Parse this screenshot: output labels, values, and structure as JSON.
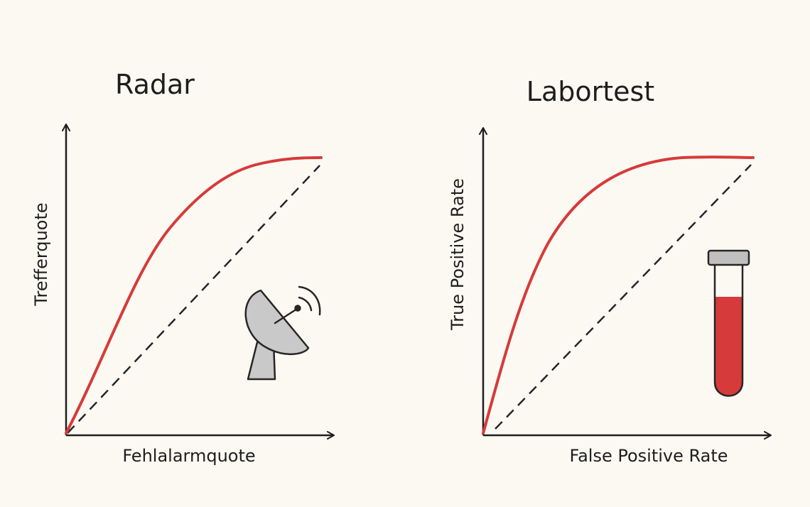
{
  "panels": [
    {
      "id": "radar",
      "title": "Radar",
      "xlabel": "Fehlalarmquote",
      "ylabel": "Trefferquote",
      "icon": "satellite-dish-icon"
    },
    {
      "id": "labortest",
      "title": "Labortest",
      "xlabel": "False Positive Rate",
      "ylabel": "True Positive Rate",
      "icon": "test-tube-icon"
    }
  ],
  "colors": {
    "background": "#fcf9f2",
    "curve": "#d63a3a",
    "axis": "#1e1e1e",
    "diagonal": "#23262b",
    "icon_fill": "#c9c9c9",
    "tube_liquid": "#d63a3a",
    "tube_cap": "#bfbfbf"
  }
}
